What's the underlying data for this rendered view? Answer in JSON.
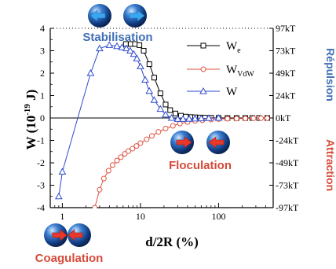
{
  "chart_data": {
    "type": "line",
    "x_scale": "log",
    "xlim": [
      0.7,
      500
    ],
    "ylim": [
      -4,
      4
    ],
    "xlabel": "d/2R (%)",
    "ylabel_main": "W (10",
    "ylabel_exp": "-19",
    "ylabel_unit": " J)",
    "x_tick_labels": [
      "1",
      "10",
      "100"
    ],
    "x_tick_values": [
      1,
      10,
      100
    ],
    "y_tick_labels": [
      "-4",
      "-3",
      "-2",
      "-1",
      "0",
      "1",
      "2",
      "3",
      "4"
    ],
    "y_tick_values": [
      -4,
      -3,
      -2,
      -1,
      0,
      1,
      2,
      3,
      4
    ],
    "right_tick_labels": [
      "97kT",
      "73kT",
      "49kT",
      "24kT",
      "0kT",
      "-24kT",
      "-49kT",
      "-73kT",
      "-97kT"
    ],
    "right_tick_values": [
      4,
      3,
      2,
      1,
      0,
      -1,
      -2,
      -3,
      -4
    ],
    "legend_position": "top-right",
    "series": [
      {
        "name": "W",
        "sub": "e",
        "color": "#000000",
        "marker": "square",
        "x": [
          6.5,
          7.5,
          8.5,
          9.7,
          11,
          13,
          15,
          18,
          21,
          24,
          28,
          33,
          38,
          44,
          50,
          58,
          67,
          80,
          100,
          130,
          170,
          220,
          270,
          330,
          420
        ],
        "y": [
          3.3,
          3.3,
          3.3,
          3.25,
          3.0,
          2.4,
          1.8,
          1.1,
          0.6,
          0.35,
          0.2,
          0.1,
          0.06,
          0.04,
          0.03,
          0.02,
          0.015,
          0.01,
          0.005,
          0,
          0,
          0,
          0,
          0,
          0
        ]
      },
      {
        "name": "W",
        "sub": "VdW",
        "color": "#e0523f",
        "marker": "circle",
        "x": [
          2.6,
          3.0,
          3.4,
          3.9,
          4.4,
          5.0,
          5.6,
          6.3,
          7.0,
          7.9,
          8.9,
          10,
          12,
          14,
          17,
          21,
          26,
          32,
          40,
          50,
          62,
          80,
          100,
          130,
          170,
          220,
          280,
          350,
          420
        ],
        "y": [
          -4.0,
          -3.2,
          -2.7,
          -2.35,
          -2.1,
          -1.9,
          -1.75,
          -1.6,
          -1.48,
          -1.37,
          -1.25,
          -1.12,
          -0.95,
          -0.8,
          -0.62,
          -0.47,
          -0.35,
          -0.25,
          -0.18,
          -0.13,
          -0.1,
          -0.07,
          -0.05,
          -0.035,
          -0.025,
          -0.02,
          -0.015,
          -0.01,
          -0.01
        ]
      },
      {
        "name": "W",
        "sub": "",
        "color": "#2f4bd1",
        "marker": "triangle",
        "x": [
          0.9,
          1.0,
          2.3,
          3.0,
          4.0,
          5.0,
          5.8,
          6.6,
          7.4,
          8.2,
          9.0,
          10,
          11.5,
          13,
          15,
          18,
          21,
          25,
          30,
          35,
          42,
          50,
          60,
          75,
          100
        ],
        "y": [
          -3.5,
          -2.4,
          2.0,
          3.1,
          3.25,
          3.2,
          3.15,
          3.1,
          3.0,
          2.85,
          2.65,
          2.3,
          1.7,
          1.2,
          0.8,
          0.4,
          0.15,
          0.0,
          -0.05,
          -0.05,
          -0.04,
          -0.03,
          -0.02,
          -0.01,
          0
        ]
      }
    ],
    "annotations": {
      "stabilisation": "Stabilisation",
      "floculation": "Floculation",
      "coagulation": "Coagulation",
      "repulsion": "Répulsion",
      "attraction": "Attraction"
    }
  }
}
